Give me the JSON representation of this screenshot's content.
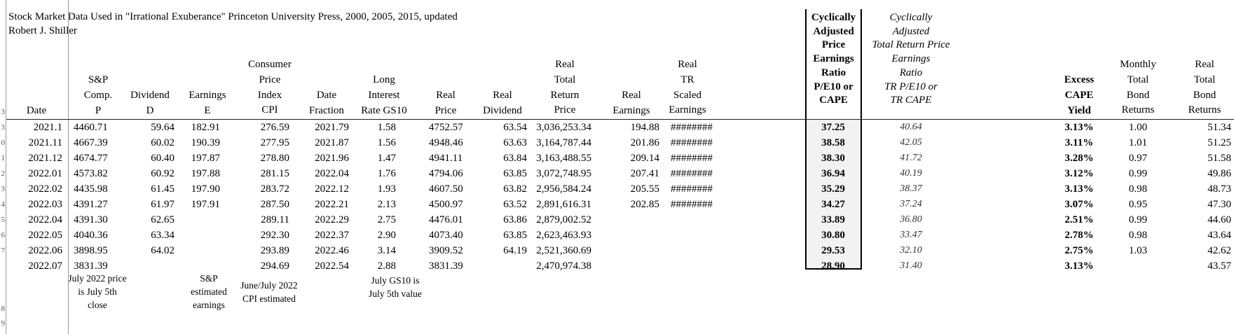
{
  "sheet": {
    "title_line1": "Stock Market Data Used in \"Irrational Exuberance\" Princeton University Press, 2000, 2005, 2015, updated",
    "title_line2": "Robert J. Shiller"
  },
  "row_numbers": [
    "3",
    "3",
    "0",
    "1",
    "2",
    "3",
    "4",
    "5",
    "6",
    "7",
    "8",
    "9"
  ],
  "headers": {
    "date": [
      "Date"
    ],
    "sp": [
      "S&P",
      "Comp.",
      "P"
    ],
    "dividend": [
      "Dividend",
      "D"
    ],
    "earnings": [
      "Earnings",
      "E"
    ],
    "cpi": [
      "Consumer",
      "Price",
      "Index",
      "CPI"
    ],
    "date_fraction": [
      "Date",
      "Fraction"
    ],
    "long_rate": [
      "Long",
      "Interest",
      "Rate GS10"
    ],
    "real_price": [
      "Real",
      "Price"
    ],
    "real_dividend": [
      "Real",
      "Dividend"
    ],
    "real_total_return": [
      "Real",
      "Total",
      "Return",
      "Price"
    ],
    "real_earnings": [
      "Real",
      "Earnings"
    ],
    "real_tr_scaled": [
      "Real",
      "TR",
      "Scaled",
      "Earnings"
    ],
    "cape": [
      "Cyclically",
      "Adjusted",
      "Price",
      "Earnings",
      "Ratio",
      "P/E10 or",
      "CAPE"
    ],
    "tr_cape": [
      "Cyclically",
      "Adjusted",
      "Total Return Price",
      "Earnings",
      "Ratio",
      "TR P/E10 or",
      "TR CAPE"
    ],
    "excess_cape": [
      "Excess",
      "CAPE",
      "Yield"
    ],
    "bond_returns": [
      "Monthly",
      "Total",
      "Bond",
      "Returns"
    ],
    "real_bond": [
      "Real",
      "Total",
      "Bond",
      "Returns"
    ]
  },
  "rows": [
    {
      "date": "2021.1",
      "sp": "4460.71",
      "div": "59.64",
      "earn": "182.91",
      "cpi": "276.59",
      "frac": "2021.79",
      "gs10": "1.58",
      "rprice": "4752.57",
      "rdiv": "63.54",
      "rtr": "3,036,253.34",
      "rearn": "194.88",
      "trs": "########",
      "cape": "37.25",
      "trcape": "40.64",
      "excess": "3.13%",
      "bond": "1.00",
      "rbond": "51.34"
    },
    {
      "date": "2021.11",
      "sp": "4667.39",
      "div": "60.02",
      "earn": "190.39",
      "cpi": "277.95",
      "frac": "2021.87",
      "gs10": "1.56",
      "rprice": "4948.46",
      "rdiv": "63.63",
      "rtr": "3,164,787.44",
      "rearn": "201.86",
      "trs": "########",
      "cape": "38.58",
      "trcape": "42.05",
      "excess": "3.11%",
      "bond": "1.01",
      "rbond": "51.25"
    },
    {
      "date": "2021.12",
      "sp": "4674.77",
      "div": "60.40",
      "earn": "197.87",
      "cpi": "278.80",
      "frac": "2021.96",
      "gs10": "1.47",
      "rprice": "4941.11",
      "rdiv": "63.84",
      "rtr": "3,163,488.55",
      "rearn": "209.14",
      "trs": "########",
      "cape": "38.30",
      "trcape": "41.72",
      "excess": "3.28%",
      "bond": "0.97",
      "rbond": "51.58"
    },
    {
      "date": "2022.01",
      "sp": "4573.82",
      "div": "60.92",
      "earn": "197.88",
      "cpi": "281.15",
      "frac": "2022.04",
      "gs10": "1.76",
      "rprice": "4794.06",
      "rdiv": "63.85",
      "rtr": "3,072,748.95",
      "rearn": "207.41",
      "trs": "########",
      "cape": "36.94",
      "trcape": "40.19",
      "excess": "3.12%",
      "bond": "0.99",
      "rbond": "49.86"
    },
    {
      "date": "2022.02",
      "sp": "4435.98",
      "div": "61.45",
      "earn": "197.90",
      "cpi": "283.72",
      "frac": "2022.12",
      "gs10": "1.93",
      "rprice": "4607.50",
      "rdiv": "63.82",
      "rtr": "2,956,584.24",
      "rearn": "205.55",
      "trs": "########",
      "cape": "35.29",
      "trcape": "38.37",
      "excess": "3.13%",
      "bond": "0.98",
      "rbond": "48.73"
    },
    {
      "date": "2022.03",
      "sp": "4391.27",
      "div": "61.97",
      "earn": "197.91",
      "cpi": "287.50",
      "frac": "2022.21",
      "gs10": "2.13",
      "rprice": "4500.97",
      "rdiv": "63.52",
      "rtr": "2,891,616.31",
      "rearn": "202.85",
      "trs": "########",
      "cape": "34.27",
      "trcape": "37.24",
      "excess": "3.07%",
      "bond": "0.95",
      "rbond": "47.30"
    },
    {
      "date": "2022.04",
      "sp": "4391.30",
      "div": "62.65",
      "earn": "",
      "cpi": "289.11",
      "frac": "2022.29",
      "gs10": "2.75",
      "rprice": "4476.01",
      "rdiv": "63.86",
      "rtr": "2,879,002.52",
      "rearn": "",
      "trs": "",
      "cape": "33.89",
      "trcape": "36.80",
      "excess": "2.51%",
      "bond": "0.99",
      "rbond": "44.60"
    },
    {
      "date": "2022.05",
      "sp": "4040.36",
      "div": "63.34",
      "earn": "",
      "cpi": "292.30",
      "frac": "2022.37",
      "gs10": "2.90",
      "rprice": "4073.40",
      "rdiv": "63.85",
      "rtr": "2,623,463.93",
      "rearn": "",
      "trs": "",
      "cape": "30.80",
      "trcape": "33.47",
      "excess": "2.78%",
      "bond": "0.98",
      "rbond": "43.64"
    },
    {
      "date": "2022.06",
      "sp": "3898.95",
      "div": "64.02",
      "earn": "",
      "cpi": "293.89",
      "frac": "2022.46",
      "gs10": "3.14",
      "rprice": "3909.52",
      "rdiv": "64.19",
      "rtr": "2,521,360.69",
      "rearn": "",
      "trs": "",
      "cape": "29.53",
      "trcape": "32.10",
      "excess": "2.75%",
      "bond": "1.03",
      "rbond": "42.62"
    },
    {
      "date": "2022.07",
      "sp": "3831.39",
      "div": "",
      "earn": "",
      "cpi": "294.69",
      "frac": "2022.54",
      "gs10": "2.88",
      "rprice": "3831.39",
      "rdiv": "",
      "rtr": "2,470,974.38",
      "rearn": "",
      "trs": "",
      "cape": "28.90",
      "trcape": "31.40",
      "excess": "3.13%",
      "bond": "",
      "rbond": "43.57"
    }
  ],
  "notes": {
    "price_note": [
      "July 2022 price",
      "is July 5th",
      "close"
    ],
    "earnings_note": [
      "S&P",
      "estimated",
      "earnings"
    ],
    "cpi_note": [
      "June/July 2022",
      "CPI estimated"
    ],
    "gs10_note": [
      "July GS10 is",
      "July 5th value"
    ]
  }
}
